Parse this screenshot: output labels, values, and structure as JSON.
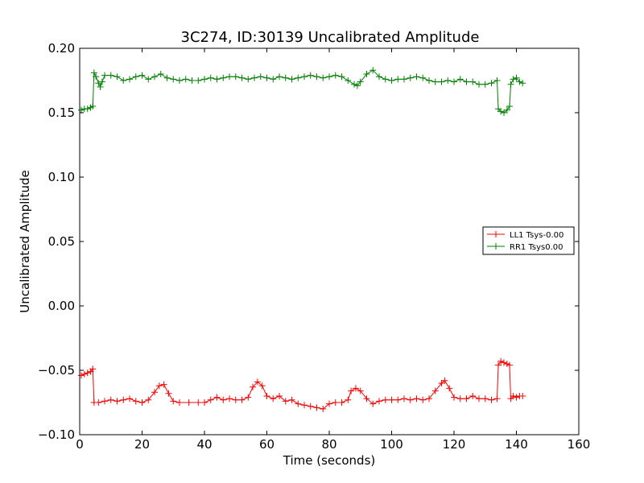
{
  "chart_data": {
    "type": "line",
    "title": "3C274, ID:30139 Uncalibrated Amplitude",
    "xlabel": "Time (seconds)",
    "ylabel": "Uncalibrated Amplitude",
    "xlim": [
      0,
      160
    ],
    "ylim": [
      -0.1,
      0.2
    ],
    "xticks": [
      0,
      20,
      40,
      60,
      80,
      100,
      120,
      140,
      160
    ],
    "yticks": [
      -0.1,
      -0.05,
      0.0,
      0.05,
      0.1,
      0.15,
      0.2
    ],
    "xtick_labels": [
      "0",
      "20",
      "40",
      "60",
      "80",
      "100",
      "120",
      "140",
      "160"
    ],
    "ytick_labels": [
      "−0.10",
      "−0.05",
      "0.00",
      "0.05",
      "0.10",
      "0.15",
      "0.20"
    ],
    "grid": false,
    "legend_position": "center-right",
    "marker": "+",
    "series": [
      {
        "name": "LL1 Tsys-0.00",
        "color": "#ff0000",
        "points": [
          [
            0.5,
            -0.054
          ],
          [
            1.5,
            -0.053
          ],
          [
            2.5,
            -0.052
          ],
          [
            3.5,
            -0.051
          ],
          [
            4.2,
            -0.049
          ],
          [
            4.6,
            -0.075
          ],
          [
            6,
            -0.075
          ],
          [
            8,
            -0.074
          ],
          [
            10,
            -0.073
          ],
          [
            12,
            -0.074
          ],
          [
            14,
            -0.073
          ],
          [
            16,
            -0.072
          ],
          [
            18,
            -0.074
          ],
          [
            20,
            -0.075
          ],
          [
            22,
            -0.073
          ],
          [
            24,
            -0.067
          ],
          [
            25.5,
            -0.062
          ],
          [
            27,
            -0.061
          ],
          [
            28.5,
            -0.068
          ],
          [
            30,
            -0.074
          ],
          [
            32,
            -0.075
          ],
          [
            35,
            -0.075
          ],
          [
            38,
            -0.075
          ],
          [
            40,
            -0.075
          ],
          [
            42,
            -0.073
          ],
          [
            44,
            -0.071
          ],
          [
            46,
            -0.073
          ],
          [
            48,
            -0.072
          ],
          [
            50,
            -0.073
          ],
          [
            52,
            -0.073
          ],
          [
            54,
            -0.071
          ],
          [
            55.5,
            -0.063
          ],
          [
            57,
            -0.059
          ],
          [
            58.5,
            -0.062
          ],
          [
            60,
            -0.07
          ],
          [
            62,
            -0.072
          ],
          [
            64,
            -0.07
          ],
          [
            66,
            -0.074
          ],
          [
            68,
            -0.073
          ],
          [
            70,
            -0.076
          ],
          [
            72,
            -0.077
          ],
          [
            74,
            -0.078
          ],
          [
            76,
            -0.079
          ],
          [
            78,
            -0.08
          ],
          [
            80,
            -0.076
          ],
          [
            82,
            -0.075
          ],
          [
            84,
            -0.075
          ],
          [
            86,
            -0.073
          ],
          [
            87,
            -0.066
          ],
          [
            88.5,
            -0.064
          ],
          [
            90,
            -0.066
          ],
          [
            92,
            -0.072
          ],
          [
            94,
            -0.076
          ],
          [
            96,
            -0.074
          ],
          [
            98,
            -0.073
          ],
          [
            100,
            -0.073
          ],
          [
            102,
            -0.073
          ],
          [
            104,
            -0.072
          ],
          [
            106,
            -0.073
          ],
          [
            108,
            -0.072
          ],
          [
            110,
            -0.073
          ],
          [
            112,
            -0.072
          ],
          [
            114,
            -0.066
          ],
          [
            116,
            -0.06
          ],
          [
            117,
            -0.058
          ],
          [
            118.5,
            -0.064
          ],
          [
            120,
            -0.071
          ],
          [
            122,
            -0.072
          ],
          [
            124,
            -0.072
          ],
          [
            126,
            -0.07
          ],
          [
            128,
            -0.072
          ],
          [
            130,
            -0.072
          ],
          [
            132,
            -0.073
          ],
          [
            133.8,
            -0.072
          ],
          [
            134.2,
            -0.046
          ],
          [
            135,
            -0.043
          ],
          [
            136,
            -0.044
          ],
          [
            137,
            -0.045
          ],
          [
            137.8,
            -0.046
          ],
          [
            138.2,
            -0.072
          ],
          [
            139,
            -0.07
          ],
          [
            140,
            -0.071
          ],
          [
            141,
            -0.07
          ],
          [
            142,
            -0.07
          ]
        ]
      },
      {
        "name": "RR1 Tsys0.00",
        "color": "#008000",
        "points": [
          [
            0.5,
            0.152
          ],
          [
            1.5,
            0.153
          ],
          [
            2.5,
            0.153
          ],
          [
            3.5,
            0.154
          ],
          [
            4.2,
            0.155
          ],
          [
            4.6,
            0.181
          ],
          [
            5.2,
            0.178
          ],
          [
            6,
            0.173
          ],
          [
            6.6,
            0.17
          ],
          [
            7.2,
            0.174
          ],
          [
            8,
            0.179
          ],
          [
            10,
            0.179
          ],
          [
            12,
            0.178
          ],
          [
            14,
            0.175
          ],
          [
            16,
            0.176
          ],
          [
            18,
            0.178
          ],
          [
            20,
            0.179
          ],
          [
            22,
            0.176
          ],
          [
            24,
            0.178
          ],
          [
            26,
            0.18
          ],
          [
            28,
            0.177
          ],
          [
            30,
            0.176
          ],
          [
            32,
            0.175
          ],
          [
            34,
            0.176
          ],
          [
            36,
            0.175
          ],
          [
            38,
            0.175
          ],
          [
            40,
            0.176
          ],
          [
            42,
            0.177
          ],
          [
            44,
            0.176
          ],
          [
            46,
            0.177
          ],
          [
            48,
            0.178
          ],
          [
            50,
            0.178
          ],
          [
            52,
            0.177
          ],
          [
            54,
            0.176
          ],
          [
            56,
            0.177
          ],
          [
            58,
            0.178
          ],
          [
            60,
            0.177
          ],
          [
            62,
            0.176
          ],
          [
            64,
            0.178
          ],
          [
            66,
            0.177
          ],
          [
            68,
            0.176
          ],
          [
            70,
            0.177
          ],
          [
            72,
            0.178
          ],
          [
            74,
            0.179
          ],
          [
            76,
            0.178
          ],
          [
            78,
            0.177
          ],
          [
            80,
            0.178
          ],
          [
            82,
            0.179
          ],
          [
            84,
            0.178
          ],
          [
            86,
            0.175
          ],
          [
            88,
            0.172
          ],
          [
            89,
            0.171
          ],
          [
            90,
            0.174
          ],
          [
            92,
            0.18
          ],
          [
            94,
            0.183
          ],
          [
            96,
            0.178
          ],
          [
            98,
            0.176
          ],
          [
            100,
            0.175
          ],
          [
            102,
            0.176
          ],
          [
            104,
            0.176
          ],
          [
            106,
            0.177
          ],
          [
            108,
            0.178
          ],
          [
            110,
            0.177
          ],
          [
            112,
            0.175
          ],
          [
            114,
            0.174
          ],
          [
            116,
            0.174
          ],
          [
            118,
            0.175
          ],
          [
            120,
            0.174
          ],
          [
            122,
            0.176
          ],
          [
            124,
            0.174
          ],
          [
            126,
            0.174
          ],
          [
            128,
            0.172
          ],
          [
            130,
            0.172
          ],
          [
            132,
            0.173
          ],
          [
            133.8,
            0.175
          ],
          [
            134.2,
            0.153
          ],
          [
            135,
            0.151
          ],
          [
            136,
            0.15
          ],
          [
            137,
            0.152
          ],
          [
            137.8,
            0.155
          ],
          [
            138.2,
            0.172
          ],
          [
            139,
            0.176
          ],
          [
            140,
            0.177
          ],
          [
            141,
            0.174
          ],
          [
            142,
            0.173
          ]
        ]
      }
    ]
  }
}
